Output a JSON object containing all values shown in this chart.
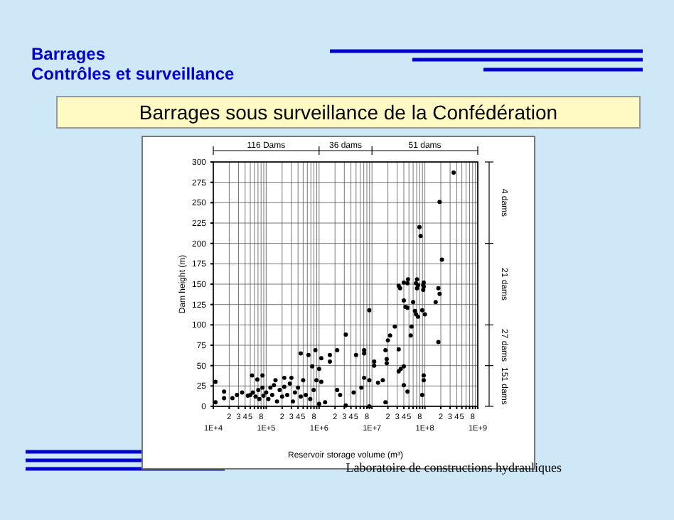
{
  "chart_data": {
    "type": "scatter",
    "title": "Barrages sous surveillance de la Confédération",
    "xlabel": "Reservoir storage volume (m³)",
    "ylabel": "Dam height (m)",
    "annotations": [
      "Barrages",
      "Contrôles et surveillance",
      "2",
      "3",
      "4",
      "5",
      "8",
      "2",
      "3",
      "4",
      "5",
      "8",
      "2",
      "3",
      "4",
      "5",
      "8",
      "2",
      "3",
      "4",
      "5",
      "8",
      "2",
      "3",
      "4",
      "5",
      "8",
      "116 Dams",
      "36 dams",
      "51 dams",
      "4 dams",
      "21 dams",
      "27 dams",
      "151 dams",
      "Laboratoire de constructions hydrauliques"
    ],
    "log": "x",
    "grid": true,
    "marker": "circle",
    "xlim": [
      10000,
      1000000000
    ],
    "ylim": [
      0,
      300
    ],
    "xticks": [
      {
        "value": 10000,
        "label": "1E+4"
      },
      {
        "value": 20000,
        "label": null
      },
      {
        "value": 30000,
        "label": null
      },
      {
        "value": 40000,
        "label": null
      },
      {
        "value": 50000,
        "label": null
      },
      {
        "value": 60000,
        "label": null
      },
      {
        "value": 70000,
        "label": null
      },
      {
        "value": 80000,
        "label": null
      },
      {
        "value": 90000,
        "label": null
      },
      {
        "value": 100000,
        "label": "1E+5"
      },
      {
        "value": 200000,
        "label": null
      },
      {
        "value": 300000,
        "label": null
      },
      {
        "value": 400000,
        "label": null
      },
      {
        "value": 500000,
        "label": null
      },
      {
        "value": 600000,
        "label": null
      },
      {
        "value": 700000,
        "label": null
      },
      {
        "value": 800000,
        "label": null
      },
      {
        "value": 900000,
        "label": null
      },
      {
        "value": 1000000,
        "label": "1E+6"
      },
      {
        "value": 2000000,
        "label": null
      },
      {
        "value": 3000000,
        "label": null
      },
      {
        "value": 4000000,
        "label": null
      },
      {
        "value": 5000000,
        "label": null
      },
      {
        "value": 6000000,
        "label": null
      },
      {
        "value": 7000000,
        "label": null
      },
      {
        "value": 8000000,
        "label": null
      },
      {
        "value": 9000000,
        "label": null
      },
      {
        "value": 10000000,
        "label": "1E+7"
      },
      {
        "value": 20000000,
        "label": null
      },
      {
        "value": 30000000,
        "label": null
      },
      {
        "value": 40000000,
        "label": null
      },
      {
        "value": 50000000,
        "label": null
      },
      {
        "value": 60000000,
        "label": null
      },
      {
        "value": 70000000,
        "label": null
      },
      {
        "value": 80000000,
        "label": null
      },
      {
        "value": 90000000,
        "label": null
      },
      {
        "value": 100000000,
        "label": "1E+8"
      },
      {
        "value": 200000000,
        "label": null
      },
      {
        "value": 300000000,
        "label": null
      },
      {
        "value": 400000000,
        "label": null
      },
      {
        "value": 500000000,
        "label": null
      },
      {
        "value": 600000000,
        "label": null
      },
      {
        "value": 700000000,
        "label": null
      },
      {
        "value": 800000000,
        "label": null
      },
      {
        "value": 900000000,
        "label": null
      },
      {
        "value": 1000000000,
        "label": "1E+9"
      }
    ],
    "yticks": [
      0,
      25,
      50,
      75,
      100,
      125,
      150,
      175,
      200,
      225,
      250,
      275,
      300
    ],
    "series": [
      {
        "color": "#000000",
        "x": [
          350000000,
          190000000,
          79000000,
          83000000,
          210000000,
          32000000,
          40000000,
          48000000,
          71000000,
          74000000,
          95000000,
          95000000,
          180000000,
          34000000,
          47000000,
          68000000,
          71000000,
          93000000,
          93000000,
          40000000,
          60000000,
          43000000,
          47000000,
          65000000,
          68000000,
          74000000,
          56000000,
          54000000,
          89000000,
          100000000,
          160000000,
          190000000,
          180000000,
          8900000,
          20000000,
          22000000,
          32000000,
          27000000,
          3200000,
          7100000,
          7100000,
          5000000,
          11000000,
          11000000,
          18000000,
          19000000,
          19000000,
          32000000,
          35000000,
          40000000,
          95000000,
          95000000,
          89000000,
          40000000,
          47000000,
          450000,
          630000,
          850000,
          1100000,
          1600000,
          2200000,
          740000,
          1000000,
          1600000,
          890000,
          1100000,
          2200000,
          2500000,
          3200000,
          7100000,
          8900000,
          16000000,
          8900000,
          18000000,
          13000000,
          4500000,
          6300000,
          11000,
          11000,
          16000,
          16000,
          23000,
          28000,
          35000,
          45000,
          50000,
          56000,
          63000,
          71000,
          74000,
          85000,
          89000,
          100000,
          110000,
          120000,
          130000,
          140000,
          160000,
          180000,
          200000,
          220000,
          250000,
          280000,
          300000,
          320000,
          350000,
          400000,
          450000,
          500000,
          560000,
          680000,
          790000,
          1000000,
          1300000,
          54000,
          68000,
          85000,
          150000,
          220000
        ],
        "values": [
          287,
          251,
          220,
          209,
          180,
          148,
          152,
          156,
          156,
          149,
          152,
          147,
          145,
          145,
          151,
          151,
          145,
          149,
          143,
          130,
          128,
          122,
          121,
          117,
          113,
          110,
          98,
          87,
          118,
          113,
          128,
          138,
          79,
          118,
          81,
          87,
          70,
          98,
          88,
          69,
          65,
          63,
          50,
          55,
          69,
          58,
          53,
          43,
          46,
          49,
          38,
          32,
          14,
          26,
          18,
          65,
          63,
          69,
          59,
          63,
          69,
          49,
          46,
          55,
          32,
          30,
          20,
          14,
          1,
          35,
          32,
          32,
          0,
          5,
          29,
          17,
          23,
          30,
          5,
          18,
          10,
          10,
          14,
          17,
          13,
          14,
          17,
          12,
          20,
          9,
          23,
          13,
          17,
          9,
          23,
          14,
          26,
          6,
          20,
          12,
          24,
          14,
          28,
          35,
          6,
          17,
          23,
          12,
          32,
          14,
          9,
          20,
          3,
          5,
          38,
          33,
          38,
          32,
          35
        ]
      }
    ]
  }
}
